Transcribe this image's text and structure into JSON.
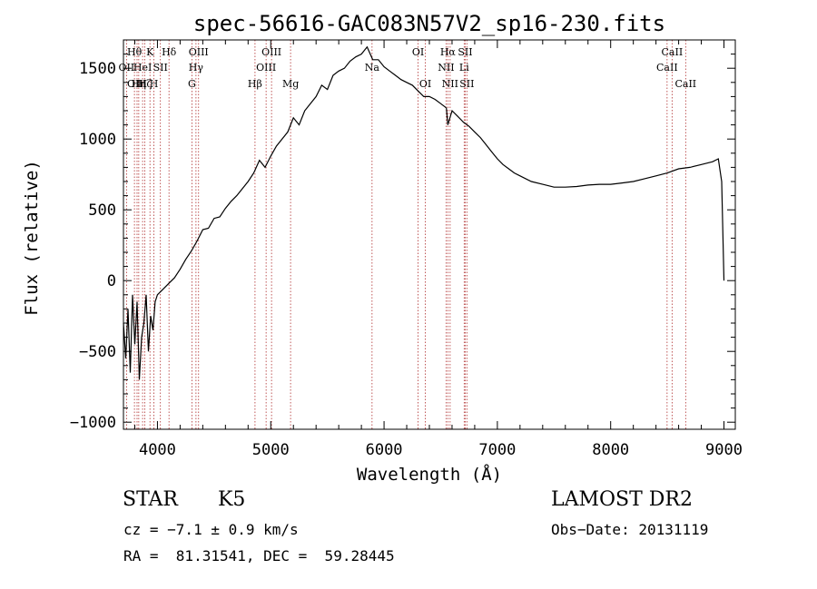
{
  "chart_data": {
    "type": "line",
    "title": "spec-56616-GAC083N57V2_sp16-230.fits",
    "xlabel": "Wavelength (Å)",
    "ylabel": "Flux (relative)",
    "xlim": [
      3700,
      9100
    ],
    "ylim": [
      -1050,
      1700
    ],
    "x_ticks": [
      4000,
      5000,
      6000,
      7000,
      8000,
      9000
    ],
    "y_ticks": [
      -1000,
      -500,
      0,
      500,
      1000,
      1500
    ],
    "grid": false,
    "line_color": "#000000",
    "marker_color": "#b03030",
    "series": [
      {
        "x": [
          3700,
          3720,
          3740,
          3760,
          3780,
          3800,
          3820,
          3840,
          3860,
          3880,
          3900,
          3920,
          3940,
          3960,
          3980,
          4000,
          4050,
          4100,
          4150,
          4200,
          4250,
          4300,
          4350,
          4400,
          4450,
          4500,
          4550,
          4600,
          4650,
          4700,
          4750,
          4800,
          4850,
          4900,
          4950,
          5000,
          5050,
          5100,
          5150,
          5200,
          5250,
          5300,
          5350,
          5400,
          5450,
          5500,
          5550,
          5600,
          5650,
          5700,
          5750,
          5800,
          5850,
          5900,
          5950,
          6000,
          6050,
          6100,
          6150,
          6200,
          6250,
          6300,
          6350,
          6400,
          6450,
          6500,
          6550,
          6563,
          6600,
          6650,
          6700,
          6750,
          6800,
          6850,
          6900,
          6950,
          7000,
          7050,
          7100,
          7150,
          7200,
          7300,
          7400,
          7500,
          7600,
          7700,
          7800,
          7900,
          8000,
          8100,
          8200,
          8300,
          8400,
          8500,
          8600,
          8700,
          8800,
          8900,
          8950,
          8980,
          9000
        ],
        "values": [
          -300,
          -550,
          -200,
          -650,
          -100,
          -450,
          -150,
          -700,
          -400,
          -300,
          -100,
          -500,
          -250,
          -350,
          -150,
          -100,
          -60,
          -20,
          20,
          80,
          150,
          210,
          280,
          360,
          370,
          440,
          450,
          510,
          560,
          600,
          650,
          700,
          760,
          850,
          800,
          880,
          950,
          1000,
          1050,
          1150,
          1100,
          1200,
          1250,
          1300,
          1380,
          1350,
          1450,
          1480,
          1500,
          1550,
          1580,
          1600,
          1650,
          1560,
          1560,
          1510,
          1480,
          1450,
          1420,
          1400,
          1380,
          1340,
          1300,
          1300,
          1280,
          1250,
          1220,
          1100,
          1200,
          1160,
          1120,
          1090,
          1050,
          1010,
          960,
          910,
          860,
          820,
          790,
          760,
          740,
          700,
          680,
          660,
          660,
          665,
          675,
          680,
          680,
          690,
          700,
          720,
          740,
          760,
          790,
          800,
          820,
          840,
          860,
          700,
          0
        ]
      }
    ],
    "lines": [
      {
        "x": 3797,
        "label": "Hθ",
        "row": 0
      },
      {
        "x": 3727,
        "label": "OII",
        "row": 1
      },
      {
        "x": 3820,
        "label": "OIII",
        "row": 2
      },
      {
        "x": 3835,
        "label": "Hη",
        "row": 2
      },
      {
        "x": 3869,
        "label": "HeI",
        "row": 1
      },
      {
        "x": 3889,
        "label": "Hζ",
        "row": 2
      },
      {
        "x": 3934,
        "label": "K",
        "row": 0
      },
      {
        "x": 3969,
        "label": "H",
        "row": 2
      },
      {
        "x": 4026,
        "label": "SII",
        "row": 1
      },
      {
        "x": 4102,
        "label": "Hδ",
        "row": 0
      },
      {
        "x": 4304,
        "label": "G",
        "row": 2
      },
      {
        "x": 4340,
        "label": "Hγ",
        "row": 1
      },
      {
        "x": 4363,
        "label": "OIII",
        "row": 0
      },
      {
        "x": 4861,
        "label": "Hβ",
        "row": 2
      },
      {
        "x": 4959,
        "label": "OIII",
        "row": 1
      },
      {
        "x": 5007,
        "label": "OIII",
        "row": 0
      },
      {
        "x": 5175,
        "label": "Mg",
        "row": 2
      },
      {
        "x": 5894,
        "label": "Na",
        "row": 1
      },
      {
        "x": 6300,
        "label": "OI",
        "row": 0
      },
      {
        "x": 6364,
        "label": "OI",
        "row": 2
      },
      {
        "x": 6548,
        "label": "NII",
        "row": 1
      },
      {
        "x": 6563,
        "label": "Hα",
        "row": 0
      },
      {
        "x": 6583,
        "label": "NII",
        "row": 2
      },
      {
        "x": 6707,
        "label": "Li",
        "row": 1
      },
      {
        "x": 6716,
        "label": "SII",
        "row": 0
      },
      {
        "x": 6731,
        "label": "SII",
        "row": 2
      },
      {
        "x": 8498,
        "label": "CaII",
        "row": 1
      },
      {
        "x": 8542,
        "label": "CaII",
        "row": 0
      },
      {
        "x": 8662,
        "label": "CaII",
        "row": 2
      }
    ]
  },
  "info": {
    "class_text": "STAR",
    "subclass_text": "K5",
    "survey_text": "LAMOST DR2",
    "cz_text": "cz = −7.1 ± 0.9 km/s",
    "obsdate_text": "Obs−Date: 20131119",
    "radec_text": "RA =  81.31541, DEC =  59.28445"
  }
}
